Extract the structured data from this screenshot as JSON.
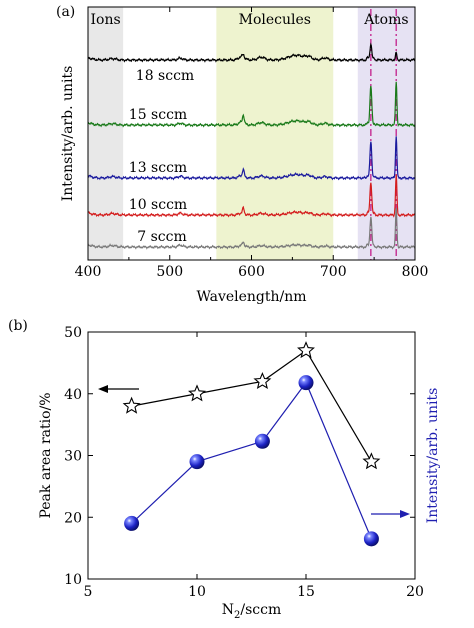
{
  "panels": {
    "a": "(a)",
    "b": "(b)"
  },
  "chart_data": [
    {
      "type": "line",
      "panel_label": "(a)",
      "xlabel": "Wavelength/nm",
      "ylabel": "Intensity/arb. units",
      "xlim": [
        400,
        800
      ],
      "xticks": [
        400,
        500,
        600,
        700,
        800
      ],
      "regions": [
        {
          "label": "Ions",
          "range": [
            400,
            443
          ],
          "color": "#e8e8e8"
        },
        {
          "label": "Molecules",
          "range": [
            557,
            700
          ],
          "color": "#eef3cf"
        },
        {
          "label": "Atoms",
          "range": [
            730,
            800
          ],
          "color": "#e6e2f3"
        }
      ],
      "marker_lines": [
        {
          "x": 746,
          "color": "#c21e8b"
        },
        {
          "x": 777,
          "color": "#c21e8b"
        }
      ],
      "series": [
        {
          "name": "18 sccm",
          "color": "#000000",
          "baseline": 60
        },
        {
          "name": "15 sccm",
          "color": "#1a7a1a",
          "baseline": 125
        },
        {
          "name": "13 sccm",
          "color": "#1b1b9e",
          "baseline": 178
        },
        {
          "name": "10 sccm",
          "color": "#d41e1e",
          "baseline": 215
        },
        {
          "name": "7 sccm",
          "color": "#7a7a7a",
          "baseline": 247
        }
      ]
    },
    {
      "type": "line",
      "panel_label": "(b)",
      "xlabel": "N2/sccm",
      "ylabel": "Peak area ratio/%",
      "ylabel_right": "Intensity/arb. units",
      "xlim": [
        5,
        20
      ],
      "ylim": [
        10,
        50
      ],
      "xticks": [
        5,
        10,
        15,
        20
      ],
      "yticks": [
        10,
        20,
        30,
        40,
        50
      ],
      "x": [
        7,
        10,
        13,
        15,
        18
      ],
      "series": [
        {
          "marker": "star",
          "color": "#000000",
          "values": [
            38,
            40,
            42,
            47,
            29
          ]
        },
        {
          "marker": "sphere",
          "color": "#1f1fb0",
          "values": [
            19,
            29,
            32.3,
            41.8,
            16.5
          ]
        }
      ]
    }
  ]
}
